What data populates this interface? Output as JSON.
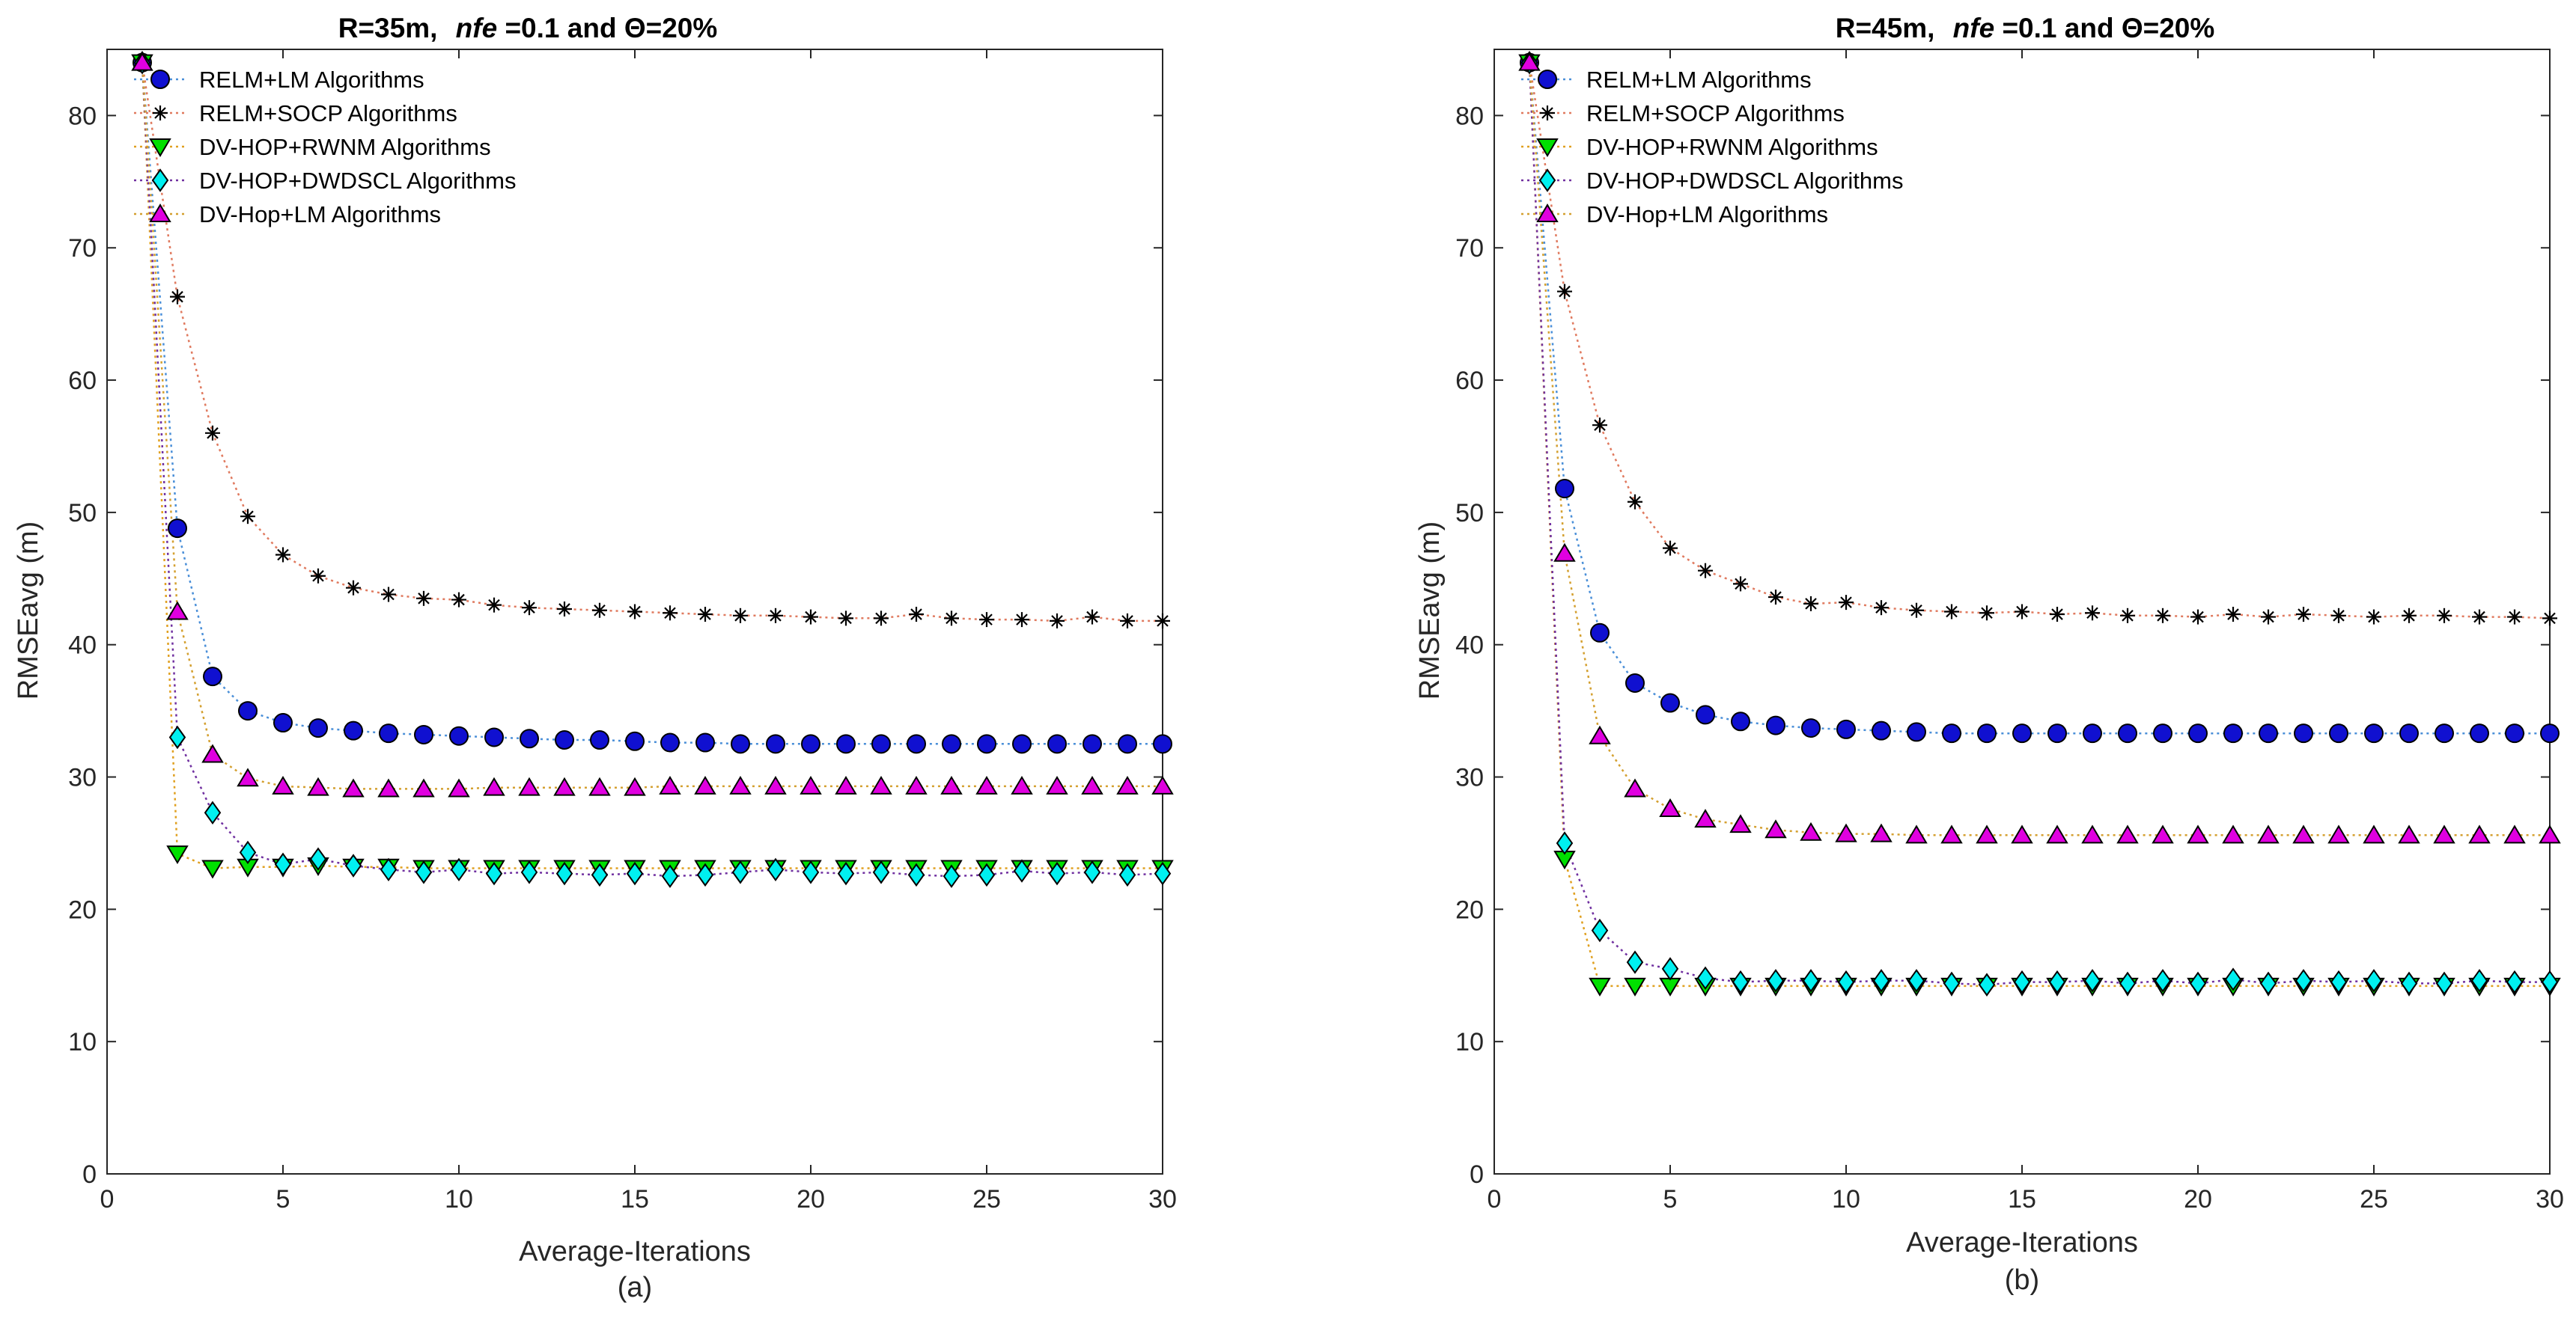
{
  "chart_data": [
    {
      "type": "line",
      "title_prefix": "R=35m,",
      "title_nfe": "nfe",
      "title_suffix": "=0.1 and Θ=20%",
      "caption": "(a)",
      "xlabel": "Average-Iterations",
      "ylabel": "RMSEavg (m)",
      "xlim": [
        0,
        30
      ],
      "ylim": [
        0,
        85
      ],
      "xticks": [
        0,
        5,
        10,
        15,
        20,
        25,
        30
      ],
      "yticks": [
        0,
        10,
        20,
        30,
        40,
        50,
        60,
        70,
        80
      ],
      "legend_position": "top-left",
      "x": [
        1,
        2,
        3,
        4,
        5,
        6,
        7,
        8,
        9,
        10,
        11,
        12,
        13,
        14,
        15,
        16,
        17,
        18,
        19,
        20,
        21,
        22,
        23,
        24,
        25,
        26,
        27,
        28,
        29,
        30
      ],
      "series": [
        {
          "name": "RELM+LM Algorithms",
          "marker": "circle",
          "fill": "#1010d0",
          "line": "#4a8fd8",
          "values": [
            84,
            48.8,
            37.6,
            35,
            34.1,
            33.7,
            33.5,
            33.3,
            33.2,
            33.1,
            33,
            32.9,
            32.8,
            32.8,
            32.7,
            32.6,
            32.6,
            32.5,
            32.5,
            32.5,
            32.5,
            32.5,
            32.5,
            32.5,
            32.5,
            32.5,
            32.5,
            32.5,
            32.5,
            32.5
          ]
        },
        {
          "name": "RELM+SOCP Algorithms",
          "marker": "star",
          "fill": "#000000",
          "line": "#e07a5f",
          "values": [
            84,
            66.3,
            56,
            49.7,
            46.8,
            45.2,
            44.3,
            43.8,
            43.5,
            43.4,
            43,
            42.8,
            42.7,
            42.6,
            42.5,
            42.4,
            42.3,
            42.2,
            42.2,
            42.1,
            42,
            42,
            42.3,
            42,
            41.9,
            41.9,
            41.8,
            42.1,
            41.8,
            41.8
          ]
        },
        {
          "name": "DV-HOP+RWNM Algorithms",
          "marker": "triangle-down",
          "fill": "#00e000",
          "line": "#e0a020",
          "values": [
            84,
            24.2,
            23.1,
            23.2,
            23.2,
            23.3,
            23.2,
            23.2,
            23.1,
            23.1,
            23.1,
            23.1,
            23.1,
            23.1,
            23.1,
            23.1,
            23.1,
            23.1,
            23.1,
            23.1,
            23.1,
            23.1,
            23.1,
            23.1,
            23.1,
            23.1,
            23.1,
            23.1,
            23.1,
            23.1
          ]
        },
        {
          "name": "DV-HOP+DWDSCL Algorithms",
          "marker": "diamond",
          "fill": "#00f0f0",
          "line": "#7030a0",
          "values": [
            84,
            33,
            27.3,
            24.3,
            23.4,
            23.8,
            23.3,
            23,
            22.8,
            23,
            22.7,
            22.8,
            22.7,
            22.6,
            22.7,
            22.5,
            22.6,
            22.8,
            23,
            22.8,
            22.7,
            22.8,
            22.6,
            22.5,
            22.6,
            22.9,
            22.7,
            22.8,
            22.6,
            22.7
          ]
        },
        {
          "name": "DV-Hop+LM Algorithms",
          "marker": "triangle-up",
          "fill": "#e000e0",
          "line": "#d4a030",
          "values": [
            84,
            42.5,
            31.7,
            29.9,
            29.3,
            29.2,
            29.1,
            29.1,
            29.1,
            29.1,
            29.2,
            29.2,
            29.2,
            29.2,
            29.2,
            29.3,
            29.3,
            29.3,
            29.3,
            29.3,
            29.3,
            29.3,
            29.3,
            29.3,
            29.3,
            29.3,
            29.3,
            29.3,
            29.3,
            29.3
          ]
        }
      ]
    },
    {
      "type": "line",
      "title_prefix": "R=45m,",
      "title_nfe": "nfe",
      "title_suffix": "=0.1 and Θ=20%",
      "caption": "(b)",
      "xlabel": "Average-Iterations",
      "ylabel": "RMSEavg (m)",
      "xlim": [
        0,
        30
      ],
      "ylim": [
        0,
        85
      ],
      "xticks": [
        0,
        5,
        10,
        15,
        20,
        25,
        30
      ],
      "yticks": [
        0,
        10,
        20,
        30,
        40,
        50,
        60,
        70,
        80
      ],
      "legend_position": "top-left",
      "x": [
        1,
        2,
        3,
        4,
        5,
        6,
        7,
        8,
        9,
        10,
        11,
        12,
        13,
        14,
        15,
        16,
        17,
        18,
        19,
        20,
        21,
        22,
        23,
        24,
        25,
        26,
        27,
        28,
        29,
        30
      ],
      "series": [
        {
          "name": "RELM+LM Algorithms",
          "marker": "circle",
          "fill": "#1010d0",
          "line": "#4a8fd8",
          "values": [
            84,
            51.8,
            40.9,
            37.1,
            35.6,
            34.7,
            34.2,
            33.9,
            33.7,
            33.6,
            33.5,
            33.4,
            33.3,
            33.3,
            33.3,
            33.3,
            33.3,
            33.3,
            33.3,
            33.3,
            33.3,
            33.3,
            33.3,
            33.3,
            33.3,
            33.3,
            33.3,
            33.3,
            33.3,
            33.3
          ]
        },
        {
          "name": "RELM+SOCP Algorithms",
          "marker": "star",
          "fill": "#000000",
          "line": "#e07a5f",
          "values": [
            84,
            66.7,
            56.6,
            50.8,
            47.3,
            45.6,
            44.6,
            43.6,
            43.1,
            43.2,
            42.8,
            42.6,
            42.5,
            42.4,
            42.5,
            42.3,
            42.4,
            42.2,
            42.2,
            42.1,
            42.3,
            42.1,
            42.3,
            42.2,
            42.1,
            42.2,
            42.2,
            42.1,
            42.1,
            42
          ]
        },
        {
          "name": "DV-HOP+RWNM Algorithms",
          "marker": "triangle-down",
          "fill": "#00e000",
          "line": "#e0a020",
          "values": [
            84,
            23.8,
            14.2,
            14.2,
            14.2,
            14.2,
            14.2,
            14.2,
            14.2,
            14.2,
            14.2,
            14.2,
            14.2,
            14.2,
            14.2,
            14.2,
            14.2,
            14.2,
            14.2,
            14.2,
            14.2,
            14.2,
            14.2,
            14.2,
            14.2,
            14.2,
            14.2,
            14.2,
            14.2,
            14.2
          ]
        },
        {
          "name": "DV-HOP+DWDSCL Algorithms",
          "marker": "diamond",
          "fill": "#00f0f0",
          "line": "#7030a0",
          "values": [
            84,
            25,
            18.4,
            16,
            15.5,
            14.8,
            14.5,
            14.6,
            14.6,
            14.5,
            14.6,
            14.6,
            14.4,
            14.3,
            14.5,
            14.5,
            14.6,
            14.4,
            14.6,
            14.4,
            14.7,
            14.4,
            14.6,
            14.5,
            14.6,
            14.4,
            14.4,
            14.6,
            14.5,
            14.5
          ]
        },
        {
          "name": "DV-Hop+LM Algorithms",
          "marker": "triangle-up",
          "fill": "#e000e0",
          "line": "#d4a030",
          "values": [
            84,
            46.9,
            33.1,
            29.1,
            27.6,
            26.8,
            26.4,
            26,
            25.8,
            25.7,
            25.7,
            25.6,
            25.6,
            25.6,
            25.6,
            25.6,
            25.6,
            25.6,
            25.6,
            25.6,
            25.6,
            25.6,
            25.6,
            25.6,
            25.6,
            25.6,
            25.6,
            25.6,
            25.6,
            25.6
          ]
        }
      ]
    }
  ]
}
